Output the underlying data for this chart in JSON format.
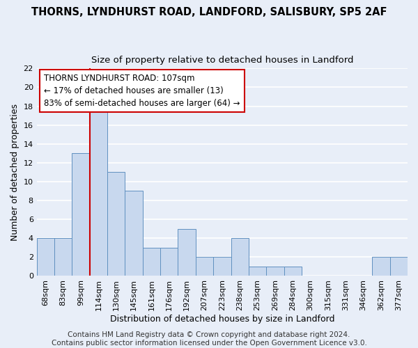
{
  "title": "THORNS, LYNDHURST ROAD, LANDFORD, SALISBURY, SP5 2AF",
  "subtitle": "Size of property relative to detached houses in Landford",
  "xlabel": "Distribution of detached houses by size in Landford",
  "ylabel": "Number of detached properties",
  "categories": [
    "68sqm",
    "83sqm",
    "99sqm",
    "114sqm",
    "130sqm",
    "145sqm",
    "161sqm",
    "176sqm",
    "192sqm",
    "207sqm",
    "223sqm",
    "238sqm",
    "253sqm",
    "269sqm",
    "284sqm",
    "300sqm",
    "315sqm",
    "331sqm",
    "346sqm",
    "362sqm",
    "377sqm"
  ],
  "values": [
    4,
    4,
    13,
    18,
    11,
    9,
    3,
    3,
    5,
    2,
    2,
    4,
    1,
    1,
    1,
    0,
    0,
    0,
    0,
    2,
    2
  ],
  "bar_color": "#c8d8ee",
  "bar_edge_color": "#6090c0",
  "vline_color": "#cc0000",
  "annotation_text": "THORNS LYNDHURST ROAD: 107sqm\n← 17% of detached houses are smaller (13)\n83% of semi-detached houses are larger (64) →",
  "annotation_box_color": "#ffffff",
  "annotation_box_edge_color": "#cc0000",
  "ylim": [
    0,
    22
  ],
  "yticks": [
    0,
    2,
    4,
    6,
    8,
    10,
    12,
    14,
    16,
    18,
    20,
    22
  ],
  "footer": "Contains HM Land Registry data © Crown copyright and database right 2024.\nContains public sector information licensed under the Open Government Licence v3.0.",
  "background_color": "#e8eef8",
  "grid_color": "#ffffff",
  "title_fontsize": 10.5,
  "subtitle_fontsize": 9.5,
  "xlabel_fontsize": 9,
  "ylabel_fontsize": 9,
  "tick_fontsize": 8,
  "annotation_fontsize": 8.5,
  "footer_fontsize": 7.5
}
